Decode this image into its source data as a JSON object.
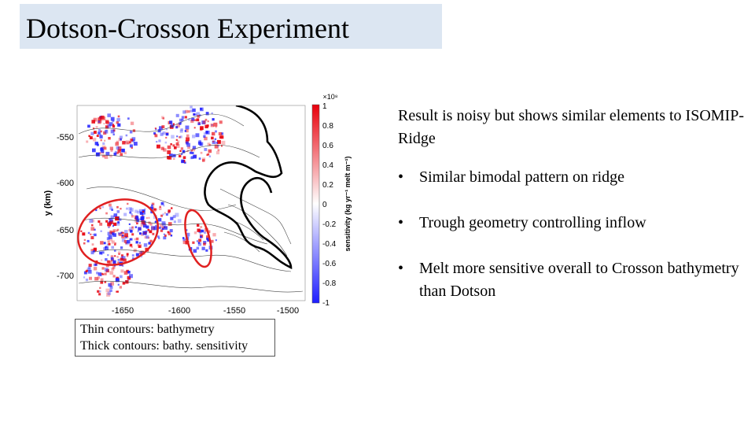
{
  "slide": {
    "title": "Dotson-Crosson Experiment",
    "intro": "Result is noisy but shows similar elements to ISOMIP-Ridge",
    "bullet_symbol": "•",
    "bullets": [
      "Similar bimodal pattern on ridge",
      "Trough geometry controlling inflow",
      "Melt more sensitive overall to Crosson bathymetry than Dotson"
    ],
    "legend": {
      "line1": "Thin contours: bathymetry",
      "line2": "Thick contours: bathy. sensitivity"
    }
  },
  "figure": {
    "ylabel": "y (km)",
    "yticks": [
      "-550",
      "-600",
      "-650",
      "-700"
    ],
    "xticks": [
      "-1650",
      "-1600",
      "-1550",
      "-1500"
    ],
    "colorbar": {
      "label": "sensitivity (kg yr⁻¹ melt m⁻¹)",
      "scale": "×10⁸",
      "ticks": [
        "1",
        "0.8",
        "0.6",
        "0.4",
        "0.2",
        "0",
        "-0.2",
        "-0.4",
        "-0.6",
        "-0.8",
        "-1"
      ],
      "color_max": "#e8000b",
      "color_mid": "#ffffff",
      "color_min": "#1d1dff"
    },
    "highlight_color": "#e02020"
  }
}
